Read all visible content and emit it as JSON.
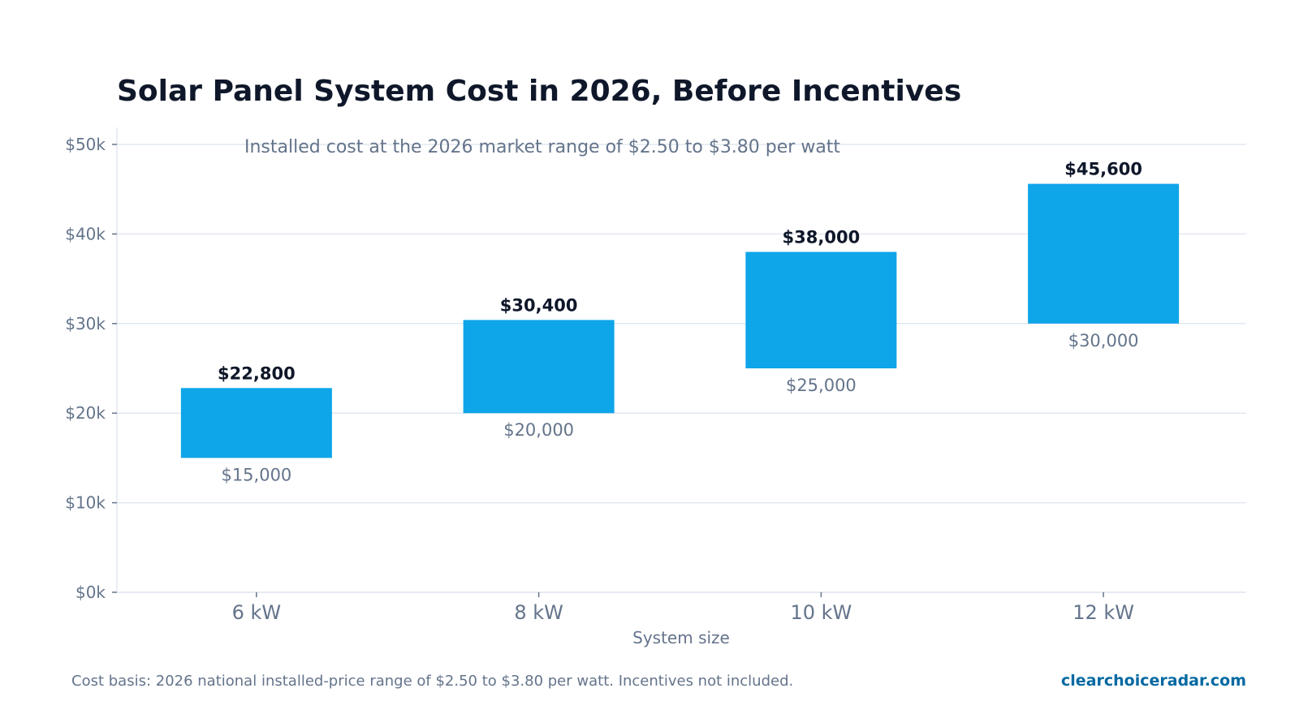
{
  "chart_data": {
    "type": "bar",
    "subtype": "floating-range",
    "title": "Solar Panel System Cost in 2026, Before Incentives",
    "subtitle": "Installed cost at the 2026 market range of $2.50 to $3.80 per watt",
    "xlabel": "System size",
    "ylabel": "",
    "categories": [
      "6 kW",
      "8 kW",
      "10 kW",
      "12 kW"
    ],
    "low": [
      15000,
      20000,
      25000,
      30000
    ],
    "high": [
      22800,
      30400,
      38000,
      45600
    ],
    "low_labels": [
      "$15,000",
      "$20,000",
      "$25,000",
      "$30,000"
    ],
    "high_labels": [
      "$22,800",
      "$30,400",
      "$38,000",
      "$45,600"
    ],
    "ylim": [
      0,
      52000
    ],
    "yticks": [
      0,
      10000,
      20000,
      30000,
      40000,
      50000
    ],
    "ytick_labels": [
      "$0k",
      "$10k",
      "$20k",
      "$30k",
      "$40k",
      "$50k"
    ],
    "grid": true,
    "legend": "none"
  },
  "footer": {
    "note": "Cost basis: 2026 national installed-price range of $2.50 to $3.80 per watt. Incentives not included.",
    "brand": "clearchoiceradar.com"
  },
  "colors": {
    "bar": "#0ea5e9",
    "title": "#0f172a",
    "muted": "#64748b",
    "grid": "#e2e8f0",
    "brand": "#0369a1"
  }
}
